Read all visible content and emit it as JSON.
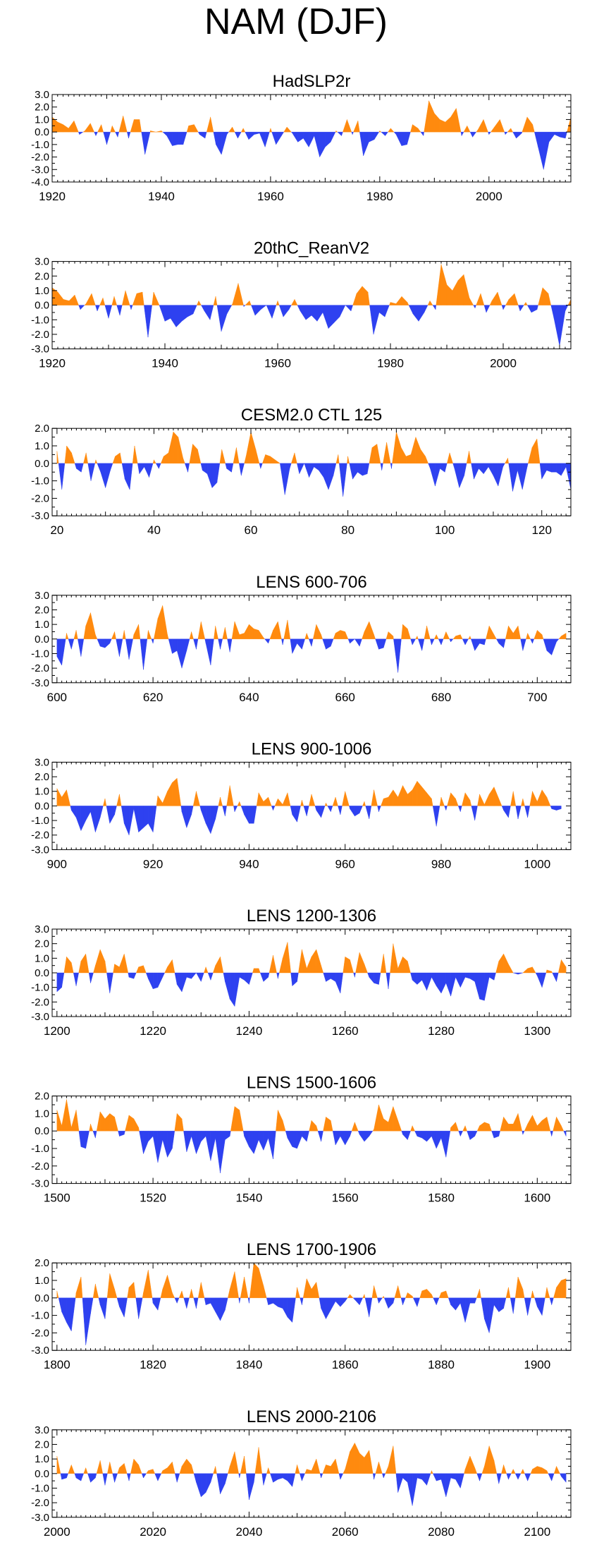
{
  "title": "NAM (DJF)",
  "colors": {
    "positive": "#FF8A0E",
    "negative": "#2E41F0",
    "axis": "#000000"
  },
  "chart_data": [
    {
      "type": "area",
      "title": "HadSLP2r",
      "xlim": [
        1920,
        2015
      ],
      "xticks": [
        1920,
        1940,
        1960,
        1980,
        2000
      ],
      "ylim": [
        -4.0,
        3.0
      ],
      "yticks": [
        "3.0",
        "2.0",
        "1.0",
        "0.0",
        "-1.0",
        "-2.0",
        "-3.0",
        "-4.0"
      ],
      "x_start": 1920,
      "values": [
        1.2,
        0.8,
        0.6,
        0.3,
        0.9,
        -0.2,
        0.1,
        0.7,
        -0.3,
        0.6,
        -1.0,
        0.5,
        -0.4,
        1.3,
        -0.5,
        1.0,
        1.0,
        -1.8,
        0.1,
        0.0,
        0.1,
        -0.3,
        -1.1,
        -1.0,
        -1.0,
        0.5,
        0.6,
        -0.2,
        -0.5,
        1.2,
        -1.0,
        -1.8,
        -0.2,
        0.4,
        -0.5,
        0.3,
        -0.6,
        -0.2,
        -0.1,
        -1.2,
        0.3,
        -1.0,
        -0.3,
        0.4,
        -0.1,
        -0.8,
        -0.5,
        -1.2,
        -0.3,
        -2.0,
        -1.2,
        -0.8,
        0.1,
        -0.3,
        1.0,
        -0.2,
        0.9,
        -1.9,
        -0.8,
        -0.6,
        0.1,
        -0.3,
        0.3,
        -0.2,
        -1.1,
        -1.0,
        0.6,
        0.3,
        -0.3,
        2.5,
        1.5,
        1.0,
        0.8,
        1.2,
        1.9,
        -0.3,
        0.5,
        -0.4,
        0.2,
        1.0,
        -0.2,
        0.4,
        1.0,
        -0.2,
        0.3,
        -0.5,
        -0.1,
        1.2,
        0.6,
        -1.2,
        -3.0,
        -0.8,
        -0.2,
        -0.4,
        -0.5,
        1.2
      ]
    },
    {
      "type": "area",
      "title": "20thC_ReanV2",
      "xlim": [
        1920,
        2012
      ],
      "xticks": [
        1920,
        1940,
        1960,
        1980,
        2000
      ],
      "ylim": [
        -3.0,
        3.0
      ],
      "yticks": [
        "3.0",
        "2.0",
        "1.0",
        "0.0",
        "-1.0",
        "-2.0",
        "-3.0"
      ],
      "x_start": 1920,
      "values": [
        1.2,
        0.9,
        0.4,
        0.3,
        0.7,
        -0.3,
        0.1,
        0.8,
        -0.4,
        0.5,
        -0.9,
        0.6,
        -0.7,
        1.0,
        -0.3,
        0.8,
        0.9,
        -2.2,
        0.9,
        0.0,
        -1.1,
        -0.9,
        -1.5,
        -1.1,
        -0.8,
        -0.6,
        0.3,
        -0.4,
        -1.0,
        0.6,
        -1.8,
        -0.6,
        0.1,
        1.5,
        -0.1,
        0.3,
        -0.7,
        -0.3,
        0.0,
        -0.9,
        0.3,
        -0.8,
        -0.3,
        0.4,
        -0.4,
        -1.0,
        -0.7,
        -1.1,
        -0.5,
        -1.6,
        -1.2,
        -0.8,
        0.0,
        -0.4,
        0.8,
        1.3,
        0.9,
        -2.0,
        -0.5,
        -0.8,
        0.2,
        0.1,
        0.6,
        0.2,
        -0.6,
        -1.1,
        -0.5,
        0.3,
        -0.3,
        2.8,
        1.4,
        1.0,
        1.7,
        2.1,
        0.5,
        -0.2,
        0.8,
        -0.5,
        0.3,
        0.9,
        -0.3,
        0.4,
        0.8,
        -0.4,
        0.2,
        -0.5,
        -0.3,
        1.2,
        0.8,
        -0.9,
        -2.8,
        -0.4,
        0.4
      ]
    },
    {
      "type": "area",
      "title": "CESM2.0 CTL 125",
      "xlim": [
        19,
        126
      ],
      "xticks": [
        20,
        40,
        60,
        80,
        100,
        120
      ],
      "ylim": [
        -3.0,
        2.0
      ],
      "yticks": [
        "2.0",
        "1.0",
        "0.0",
        "-1.0",
        "-2.0",
        "-3.0"
      ],
      "x_start": 20,
      "values": [
        0.7,
        -1.5,
        1.0,
        0.6,
        -0.3,
        -0.5,
        0.6,
        -1.0,
        0.2,
        -0.5,
        -1.4,
        -0.4,
        0.4,
        0.6,
        -0.9,
        -1.5,
        1.0,
        -0.6,
        -0.2,
        -0.8,
        0.2,
        -0.3,
        0.4,
        0.6,
        1.8,
        1.5,
        0.3,
        -0.5,
        1.1,
        0.8,
        -0.4,
        -0.6,
        -1.4,
        -1.1,
        0.8,
        -0.3,
        -0.5,
        0.9,
        -0.7,
        0.4,
        1.8,
        0.8,
        -0.3,
        0.5,
        0.4,
        0.2,
        0.0,
        -1.8,
        -0.3,
        0.6,
        -0.6,
        0.0,
        -0.8,
        -0.2,
        -0.4,
        -0.8,
        -1.5,
        -0.7,
        0.5,
        -1.9,
        0.4,
        -0.9,
        -0.5,
        -0.7,
        -0.6,
        0.9,
        1.1,
        -0.4,
        1.2,
        -0.3,
        1.8,
        0.9,
        0.4,
        0.5,
        1.5,
        0.8,
        0.4,
        -0.3,
        -1.3,
        -0.3,
        -0.5,
        0.6,
        -0.3,
        -1.4,
        -0.7,
        0.7,
        -0.9,
        -0.3,
        -0.6,
        -0.2,
        -0.7,
        -1.3,
        -0.2,
        0.3,
        -1.6,
        -0.4,
        -1.5,
        -0.2,
        0.9,
        1.4,
        -0.9,
        -0.4,
        -0.5,
        -0.5,
        -0.7,
        -0.2,
        -1.5
      ]
    },
    {
      "type": "area",
      "title": "LENS 600-706",
      "xlim": [
        599,
        707
      ],
      "xticks": [
        600,
        620,
        640,
        660,
        680,
        700
      ],
      "ylim": [
        -3.0,
        3.0
      ],
      "yticks": [
        "3.0",
        "2.0",
        "1.0",
        "0.0",
        "-1.0",
        "-2.0",
        "-3.0"
      ],
      "x_start": 600,
      "values": [
        -1.2,
        -1.8,
        0.4,
        -0.7,
        0.6,
        -1.2,
        0.9,
        1.8,
        0.3,
        -0.5,
        -0.6,
        -0.3,
        0.5,
        -1.2,
        0.6,
        -1.4,
        0.3,
        1.0,
        -2.1,
        0.6,
        -0.3,
        1.4,
        2.3,
        0.3,
        -1.0,
        -0.8,
        -2.0,
        -0.8,
        0.5,
        -0.7,
        1.2,
        -0.3,
        -1.8,
        0.9,
        -0.7,
        0.8,
        -0.9,
        1.2,
        0.3,
        0.4,
        1.0,
        0.7,
        0.6,
        0.1,
        -0.3,
        0.6,
        1.2,
        -0.4,
        1.3,
        -1.0,
        -0.3,
        -0.7,
        0.4,
        -0.5,
        1.0,
        0.3,
        -0.7,
        -0.5,
        0.4,
        0.6,
        0.5,
        -0.3,
        0.0,
        -0.5,
        0.5,
        1.2,
        0.3,
        -0.7,
        -0.6,
        0.5,
        0.2,
        -2.3,
        1.0,
        0.7,
        -0.4,
        0.2,
        -0.8,
        0.9,
        -0.4,
        0.3,
        -0.4,
        0.5,
        -0.2,
        0.2,
        0.3,
        -0.4,
        0.2,
        -0.8,
        -0.3,
        -0.4,
        0.9,
        0.3,
        -0.3,
        -0.6,
        0.9,
        0.4,
        0.9,
        -0.8,
        0.4,
        -0.3,
        0.6,
        0.3,
        -0.8,
        -1.1,
        -0.2,
        0.2,
        0.4
      ]
    },
    {
      "type": "area",
      "title": "LENS 900-1006",
      "xlim": [
        899,
        1007
      ],
      "xticks": [
        900,
        920,
        940,
        960,
        980,
        1000
      ],
      "ylim": [
        -3.0,
        3.0
      ],
      "yticks": [
        "3.0",
        "2.0",
        "1.0",
        "0.0",
        "-1.0",
        "-2.0",
        "-3.0"
      ],
      "x_start": 900,
      "values": [
        1.2,
        0.6,
        1.1,
        -0.3,
        -0.8,
        -1.7,
        -1.0,
        -0.4,
        -1.8,
        -0.8,
        0.5,
        -1.2,
        -0.6,
        0.8,
        -1.2,
        -2.0,
        -0.2,
        -1.8,
        -1.5,
        -1.2,
        -1.8,
        0.7,
        0.2,
        1.0,
        1.6,
        1.9,
        -0.4,
        -1.5,
        -0.6,
        1.0,
        -0.3,
        -1.2,
        -1.9,
        -0.9,
        0.6,
        -0.7,
        1.4,
        -0.4,
        0.3,
        -0.6,
        -1.2,
        -1.2,
        0.9,
        0.3,
        0.6,
        -0.3,
        0.5,
        0.1,
        0.9,
        -0.6,
        -1.1,
        0.4,
        -0.7,
        0.8,
        -0.3,
        -0.8,
        0.2,
        -0.4,
        0.6,
        -0.6,
        1.0,
        -0.2,
        -0.7,
        -0.5,
        0.3,
        -0.9,
        1.1,
        -0.4,
        0.5,
        0.6,
        1.1,
        0.6,
        1.4,
        0.8,
        1.1,
        1.7,
        1.3,
        0.9,
        0.5,
        -1.4,
        0.6,
        -0.3,
        0.9,
        0.5,
        -0.4,
        0.9,
        0.4,
        -1.0,
        0.8,
        0.1,
        0.8,
        1.3,
        0.5,
        -0.3,
        -0.8,
        1.0,
        -0.9,
        0.5,
        -0.8,
        1.0,
        0.3,
        1.1,
        0.6,
        -0.2,
        -0.3,
        -0.2
      ]
    },
    {
      "type": "area",
      "title": "LENS 1200-1306",
      "xlim": [
        1199,
        1307
      ],
      "xticks": [
        1200,
        1220,
        1240,
        1260,
        1280,
        1300
      ],
      "ylim": [
        -3.0,
        3.0
      ],
      "yticks": [
        "3.0",
        "2.0",
        "1.0",
        "0.0",
        "-1.0",
        "-2.0",
        "-3.0"
      ],
      "x_start": 1200,
      "values": [
        -1.3,
        -1.0,
        1.1,
        0.7,
        -0.9,
        0.8,
        1.3,
        -0.7,
        0.5,
        1.6,
        0.8,
        -1.4,
        0.6,
        0.4,
        1.3,
        -0.3,
        -0.4,
        0.4,
        0.5,
        -0.4,
        -1.1,
        -1.0,
        -0.3,
        0.4,
        0.9,
        -0.8,
        -1.3,
        -0.3,
        -0.4,
        0.0,
        -0.6,
        0.4,
        -0.5,
        0.5,
        1.1,
        -0.6,
        -1.8,
        -2.3,
        -0.3,
        -0.5,
        -0.8,
        0.3,
        0.3,
        -0.6,
        -0.3,
        1.2,
        -0.4,
        1.0,
        2.1,
        -0.9,
        -0.6,
        1.6,
        0.3,
        1.1,
        1.6,
        0.5,
        -0.6,
        -0.4,
        -0.6,
        -1.4,
        1.1,
        0.9,
        -0.3,
        1.4,
        0.6,
        -0.3,
        -0.7,
        -0.8,
        1.3,
        -1.1,
        2.0,
        0.3,
        1.1,
        0.8,
        -0.5,
        -0.8,
        -0.5,
        -1.2,
        -0.3,
        -0.9,
        -1.4,
        -0.7,
        -1.6,
        -0.3,
        -1.0,
        -0.3,
        -0.4,
        -0.6,
        -1.8,
        -1.9,
        -0.3,
        -0.5,
        0.8,
        1.3,
        0.6,
        0.0,
        -0.1,
        0.0,
        0.3,
        0.4,
        -0.2,
        -1.0,
        0.2,
        0.1,
        -0.6,
        0.9,
        0.4
      ]
    },
    {
      "type": "area",
      "title": "LENS 1500-1606",
      "xlim": [
        1499,
        1607
      ],
      "xticks": [
        1500,
        1520,
        1540,
        1560,
        1580,
        1600
      ],
      "ylim": [
        -3.0,
        2.0
      ],
      "yticks": [
        "2.0",
        "1.0",
        "0.0",
        "-1.0",
        "-2.0",
        "-3.0"
      ],
      "x_start": 1500,
      "values": [
        1.2,
        0.3,
        1.8,
        0.2,
        1.2,
        -0.9,
        -1.0,
        0.4,
        -0.4,
        1.1,
        0.7,
        1.0,
        0.8,
        -0.3,
        -0.2,
        0.9,
        0.7,
        0.2,
        -1.3,
        -0.6,
        -0.3,
        -1.8,
        -0.5,
        -1.5,
        -1.0,
        1.0,
        0.7,
        -1.2,
        -0.3,
        -1.3,
        -0.6,
        -0.3,
        -1.7,
        -0.4,
        -2.4,
        -0.5,
        -0.3,
        1.4,
        1.2,
        -0.3,
        -0.9,
        -1.3,
        -0.5,
        -1.1,
        -0.4,
        -1.6,
        1.2,
        0.6,
        -0.4,
        -0.9,
        -1.0,
        -0.3,
        -0.6,
        0.6,
        0.3,
        -0.6,
        0.8,
        0.6,
        -0.8,
        -0.3,
        -0.8,
        -0.3,
        0.5,
        -0.2,
        -0.6,
        -0.3,
        0.1,
        1.5,
        0.7,
        0.5,
        1.4,
        0.6,
        -0.2,
        -0.5,
        0.3,
        -0.3,
        -0.4,
        -0.6,
        -0.3,
        -1.0,
        -0.4,
        -1.5,
        0.2,
        0.5,
        -0.3,
        0.3,
        -0.5,
        -0.3,
        0.3,
        0.5,
        0.4,
        -0.4,
        -0.3,
        0.8,
        0.4,
        0.4,
        1.0,
        -0.2,
        0.4,
        0.9,
        0.3,
        0.6,
        0.8,
        -0.3,
        0.8,
        0.3,
        -0.3
      ]
    },
    {
      "type": "area",
      "title": "LENS 1700-1906",
      "xlim": [
        1799,
        1907
      ],
      "xticks": [
        1800,
        1820,
        1840,
        1860,
        1880,
        1900
      ],
      "ylim": [
        -3.0,
        2.0
      ],
      "yticks": [
        "2.0",
        "1.0",
        "0.0",
        "-1.0",
        "-2.0",
        "-3.0"
      ],
      "x_start": 1800,
      "values": [
        0.4,
        -0.8,
        -1.4,
        -1.9,
        0.3,
        1.2,
        -2.7,
        -0.9,
        0.8,
        -0.4,
        -1.2,
        1.4,
        0.5,
        -0.5,
        -1.1,
        0.6,
        0.9,
        -1.2,
        0.3,
        1.6,
        -0.3,
        -0.7,
        0.5,
        1.3,
        0.3,
        -0.3,
        0.4,
        -0.6,
        0.5,
        -0.6,
        0.9,
        -0.4,
        -0.3,
        -0.8,
        -1.3,
        -0.7,
        0.5,
        1.5,
        -0.3,
        1.2,
        -0.3,
        2.0,
        1.7,
        0.7,
        -0.4,
        -0.3,
        -0.5,
        -0.6,
        -1.1,
        -1.4,
        0.6,
        -0.4,
        1.1,
        0.5,
        0.9,
        -0.6,
        -1.2,
        -0.7,
        -0.2,
        -0.5,
        -0.2,
        0.2,
        -0.1,
        -0.4,
        0.2,
        -1.1,
        0.7,
        -0.3,
        0.1,
        -0.6,
        -0.3,
        0.7,
        -0.4,
        0.3,
        0.1,
        -0.5,
        0.4,
        0.5,
        0.2,
        -0.4,
        0.3,
        0.4,
        -0.4,
        -0.7,
        -0.3,
        -1.4,
        -0.3,
        -0.3,
        0.5,
        -1.2,
        -2.0,
        -0.4,
        -0.8,
        -0.6,
        0.6,
        -0.9,
        1.2,
        0.5,
        -1.0,
        0.4,
        -0.5,
        -1.0,
        0.6,
        -0.4,
        0.6,
        1.0,
        1.1
      ]
    },
    {
      "type": "area",
      "title": "LENS 2000-2106",
      "xlim": [
        1999,
        2107
      ],
      "xticks": [
        2000,
        2020,
        2040,
        2060,
        2080,
        2100
      ],
      "ylim": [
        -3.0,
        3.0
      ],
      "yticks": [
        "3.0",
        "2.0",
        "1.0",
        "0.0",
        "-1.0",
        "-2.0",
        "-3.0"
      ],
      "x_start": 2000,
      "values": [
        1.2,
        -0.4,
        -0.3,
        0.6,
        -0.3,
        -0.5,
        0.4,
        -0.6,
        -0.3,
        0.9,
        -0.8,
        0.8,
        -0.6,
        0.4,
        0.7,
        -0.5,
        1.0,
        0.6,
        -0.3,
        0.2,
        0.3,
        -0.5,
        0.2,
        0.4,
        0.8,
        -0.6,
        0.5,
        1.0,
        0.6,
        -0.6,
        -1.6,
        -1.3,
        -0.6,
        0.5,
        -1.4,
        -0.7,
        0.5,
        1.5,
        -0.3,
        1.2,
        -1.8,
        -0.6,
        1.8,
        -0.8,
        0.4,
        -0.6,
        -0.4,
        -0.3,
        -0.5,
        -0.9,
        0.6,
        -0.5,
        0.3,
        0.2,
        1.0,
        -0.3,
        0.6,
        0.5,
        1.0,
        -0.4,
        0.3,
        1.5,
        2.1,
        1.4,
        1.1,
        1.6,
        -0.4,
        0.8,
        -0.3,
        0.5,
        1.9,
        -1.3,
        -0.3,
        -0.6,
        -2.2,
        -0.3,
        -0.4,
        -0.8,
        0.2,
        -0.5,
        -0.4,
        -1.6,
        -0.3,
        -0.4,
        -1.0,
        0.3,
        1.2,
        0.4,
        -0.5,
        0.5,
        1.9,
        0.9,
        -0.7,
        0.6,
        -0.4,
        0.3,
        -0.4,
        0.3,
        -0.5,
        0.3,
        0.5,
        0.4,
        0.2,
        -0.5,
        0.5,
        -0.2,
        -0.6
      ]
    }
  ]
}
